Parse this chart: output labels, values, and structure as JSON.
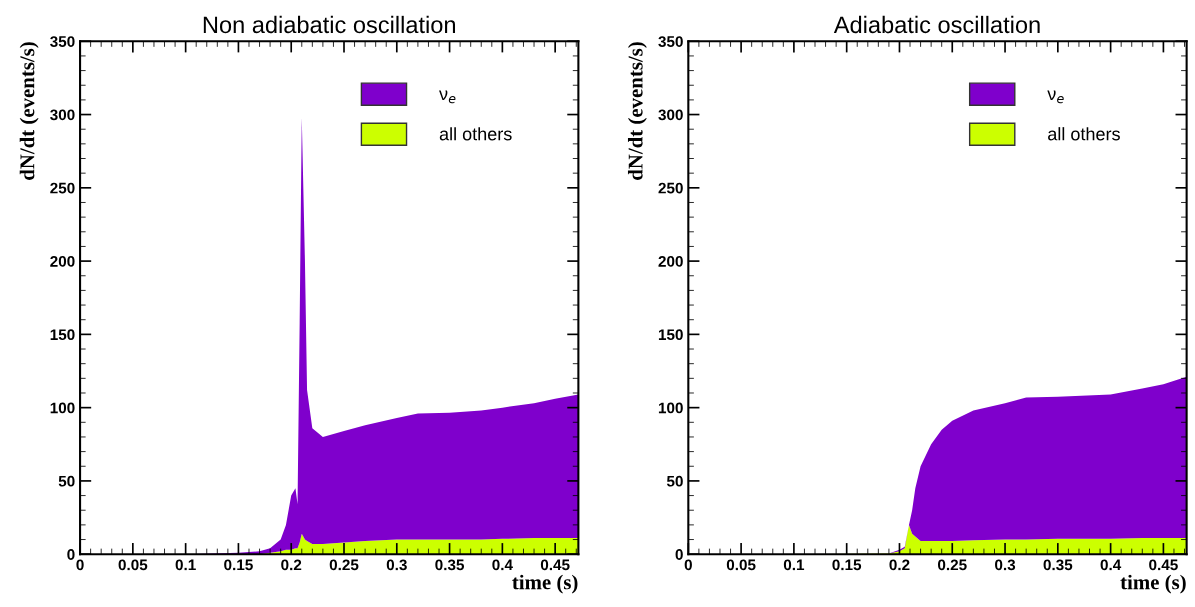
{
  "chart_data": [
    {
      "type": "area",
      "stacked": true,
      "title": "Non adiabatic oscillation",
      "xlabel": "time (s)",
      "ylabel": "dN/dt (events/s)",
      "legend": "top right",
      "x": [
        0,
        0.1,
        0.15,
        0.17,
        0.18,
        0.19,
        0.195,
        0.2,
        0.204,
        0.206,
        0.208,
        0.21,
        0.213,
        0.215,
        0.22,
        0.23,
        0.25,
        0.27,
        0.3,
        0.32,
        0.35,
        0.38,
        0.4,
        0.43,
        0.45,
        0.472
      ],
      "series": [
        {
          "name": "all others",
          "color": "#ccff00",
          "values": [
            0,
            0,
            0,
            0,
            1,
            2,
            3,
            3,
            4,
            4,
            8,
            14,
            10,
            9,
            7,
            7,
            8,
            9,
            10,
            10,
            10,
            10,
            10.5,
            11,
            11,
            11
          ]
        },
        {
          "name": "ν$_{e}$",
          "color": "#7f00cc",
          "values": [
            0,
            0,
            1,
            2,
            3,
            8,
            17,
            37,
            41,
            30,
            150,
            284,
            190,
            103,
            79,
            73,
            76,
            79,
            83,
            86,
            86.5,
            88,
            89.5,
            92,
            95,
            98
          ]
        }
      ],
      "xlim": [
        0,
        0.472
      ],
      "ylim": [
        0,
        350
      ],
      "xticks": [
        0,
        0.05,
        0.1,
        0.15,
        0.2,
        0.25,
        0.3,
        0.35,
        0.4,
        0.45
      ],
      "yticks": [
        0,
        50,
        100,
        150,
        200,
        250,
        300,
        350
      ]
    },
    {
      "type": "area",
      "stacked": true,
      "title": "Adiabatic oscillation",
      "xlabel": "time (s)",
      "ylabel": "dN/dt (events/s)",
      "legend": "top right",
      "x": [
        0,
        0.1,
        0.19,
        0.2,
        0.205,
        0.209,
        0.212,
        0.215,
        0.22,
        0.23,
        0.24,
        0.25,
        0.27,
        0.3,
        0.32,
        0.35,
        0.4,
        0.43,
        0.45,
        0.472
      ],
      "series": [
        {
          "name": "all others",
          "color": "#ccff00",
          "values": [
            0,
            0,
            0.5,
            2,
            4,
            20,
            14,
            12,
            9,
            9,
            9,
            9,
            9.5,
            10,
            10,
            10.5,
            10.5,
            11,
            11,
            11
          ]
        },
        {
          "name": "ν$_{e}$",
          "color": "#7f00cc",
          "values": [
            0,
            0,
            0,
            1,
            1,
            0,
            16,
            33,
            51,
            66,
            76,
            82,
            88.5,
            93,
            97,
            97,
            98.5,
            102,
            105,
            110
          ]
        }
      ],
      "xlim": [
        0,
        0.472
      ],
      "ylim": [
        0,
        350
      ],
      "xticks": [
        0,
        0.05,
        0.1,
        0.15,
        0.2,
        0.25,
        0.3,
        0.35,
        0.4,
        0.45
      ],
      "yticks": [
        0,
        50,
        100,
        150,
        200,
        250,
        300,
        350
      ]
    }
  ]
}
